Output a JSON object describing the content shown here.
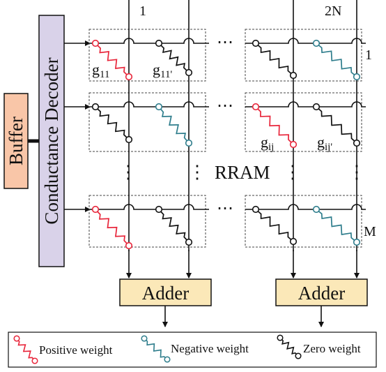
{
  "blocks": {
    "buffer": "Buffer",
    "decoder": "Conductance Decoder",
    "array": "RRAM",
    "adder_left": "Adder",
    "adder_right": "Adder"
  },
  "indices": {
    "col_first": "1",
    "col_last": "2N",
    "row_first": "1",
    "row_last": "M"
  },
  "cell_labels": {
    "g11": {
      "base": "g",
      "sub": "11"
    },
    "g11p": {
      "base": "g",
      "sub": "11'"
    },
    "gij": {
      "base": "g",
      "sub": "ij"
    },
    "gijp": {
      "base": "g",
      "sub": "ij'"
    }
  },
  "ellipsis": {
    "h": "⋯",
    "v": "⋮"
  },
  "legend": {
    "positive": "Positive weight",
    "negative": "Negative weight",
    "zero": "Zero weight"
  },
  "colors": {
    "positive": "#e8253a",
    "negative": "#2e7d8c",
    "zero": "#111111",
    "buffer_fill": "#f9c6a8",
    "decoder_fill": "#d9d2e9",
    "adder_fill": "#fbe8b8"
  }
}
